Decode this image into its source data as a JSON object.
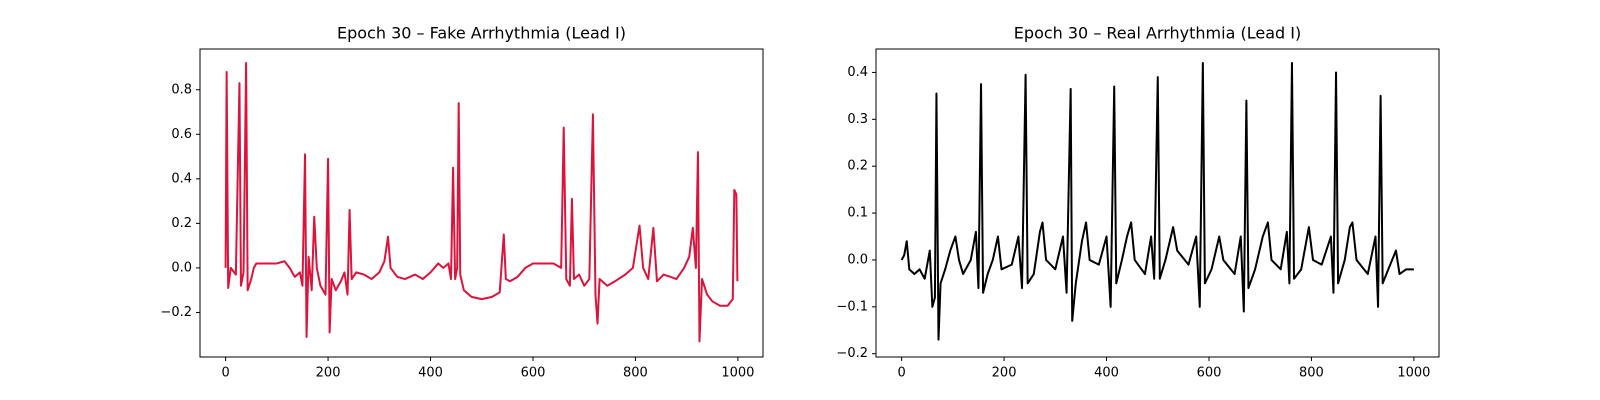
{
  "chart_data": [
    {
      "type": "line",
      "title": "Epoch 30 – Fake Arrhythmia (Lead I)",
      "color": "#dc143c",
      "x": [
        0,
        2,
        5,
        10,
        20,
        27,
        30,
        35,
        40,
        43,
        50,
        55,
        60,
        80,
        100,
        115,
        125,
        135,
        145,
        150,
        155,
        158,
        162,
        168,
        173,
        178,
        185,
        195,
        200,
        203,
        207,
        215,
        225,
        232,
        238,
        242,
        246,
        255,
        270,
        285,
        300,
        310,
        317,
        322,
        335,
        350,
        370,
        385,
        400,
        415,
        425,
        435,
        440,
        444,
        448,
        452,
        455,
        458,
        465,
        480,
        500,
        520,
        535,
        543,
        547,
        555,
        570,
        585,
        600,
        620,
        640,
        655,
        660,
        665,
        672,
        676,
        680,
        690,
        700,
        710,
        717,
        722,
        726,
        730,
        745,
        760,
        780,
        795,
        808,
        815,
        825,
        835,
        842,
        855,
        868,
        880,
        895,
        905,
        912,
        918,
        922,
        925,
        930,
        940,
        950,
        965,
        980,
        990,
        993,
        997,
        999
      ],
      "values": [
        0.0,
        0.88,
        -0.09,
        0.0,
        -0.03,
        0.83,
        -0.08,
        -0.02,
        0.92,
        -0.1,
        -0.05,
        0.0,
        0.02,
        0.02,
        0.02,
        0.03,
        0.0,
        -0.04,
        -0.02,
        -0.08,
        0.51,
        -0.31,
        0.05,
        -0.1,
        0.23,
        0.0,
        -0.08,
        -0.12,
        0.49,
        -0.29,
        -0.05,
        -0.1,
        -0.06,
        -0.02,
        -0.12,
        0.26,
        -0.05,
        -0.02,
        -0.03,
        -0.05,
        -0.02,
        0.03,
        0.14,
        0.0,
        -0.04,
        -0.05,
        -0.03,
        -0.05,
        -0.02,
        0.02,
        0.0,
        0.02,
        -0.05,
        0.45,
        -0.05,
        0.0,
        0.74,
        -0.03,
        -0.1,
        -0.13,
        -0.14,
        -0.13,
        -0.11,
        0.15,
        -0.05,
        -0.06,
        -0.04,
        0.0,
        0.02,
        0.02,
        0.02,
        0.0,
        0.63,
        -0.05,
        -0.08,
        0.31,
        -0.05,
        -0.03,
        -0.08,
        -0.05,
        0.69,
        -0.12,
        -0.25,
        -0.05,
        -0.08,
        -0.06,
        -0.03,
        0.0,
        0.19,
        0.0,
        -0.05,
        0.18,
        -0.06,
        -0.03,
        -0.04,
        -0.05,
        0.0,
        0.05,
        0.18,
        0.0,
        0.52,
        -0.33,
        -0.05,
        -0.12,
        -0.15,
        -0.17,
        -0.17,
        -0.14,
        0.35,
        0.33,
        -0.06
      ],
      "xlim": [
        -50,
        1049
      ],
      "xticks": [
        0,
        200,
        400,
        600,
        800,
        1000
      ],
      "ylim": [
        -0.4,
        0.983
      ],
      "yticks": [
        {
          "value": -0.2,
          "label": "−0.2"
        },
        {
          "value": 0,
          "label": "0.0"
        },
        0.2,
        0.4,
        0.6,
        0.8
      ]
    },
    {
      "type": "line",
      "title": "Epoch 30 – Real Arrhythmia (Lead I)",
      "color": "#000000",
      "x": [
        0,
        5,
        10,
        15,
        25,
        35,
        45,
        55,
        60,
        65,
        68,
        72,
        76,
        85,
        95,
        105,
        112,
        120,
        135,
        145,
        150,
        155,
        159,
        168,
        178,
        188,
        195,
        215,
        228,
        235,
        242,
        246,
        258,
        270,
        275,
        282,
        300,
        315,
        322,
        330,
        333,
        340,
        352,
        360,
        367,
        385,
        400,
        408,
        415,
        419,
        430,
        440,
        448,
        455,
        475,
        487,
        493,
        500,
        504,
        515,
        530,
        538,
        560,
        575,
        582,
        588,
        592,
        605,
        620,
        628,
        650,
        662,
        668,
        673,
        677,
        690,
        705,
        715,
        722,
        740,
        752,
        757,
        762,
        766,
        780,
        795,
        803,
        820,
        838,
        843,
        848,
        852,
        865,
        875,
        880,
        888,
        910,
        925,
        930,
        935,
        939,
        950,
        965,
        972,
        985,
        1000
      ],
      "values": [
        0.0,
        0.01,
        0.04,
        -0.02,
        -0.03,
        -0.02,
        -0.04,
        0.02,
        -0.1,
        -0.08,
        0.355,
        -0.17,
        -0.05,
        -0.02,
        0.02,
        0.05,
        0.0,
        -0.03,
        0.0,
        0.06,
        -0.06,
        0.375,
        -0.07,
        -0.03,
        0.0,
        0.05,
        -0.02,
        -0.01,
        0.05,
        -0.06,
        0.395,
        -0.05,
        -0.03,
        0.06,
        0.08,
        0.0,
        -0.02,
        0.05,
        -0.07,
        0.365,
        -0.13,
        -0.05,
        0.04,
        0.08,
        0.0,
        -0.01,
        0.05,
        -0.1,
        0.37,
        -0.05,
        0.0,
        0.05,
        0.08,
        0.0,
        -0.03,
        0.05,
        -0.04,
        0.39,
        -0.04,
        0.0,
        0.07,
        0.02,
        -0.01,
        0.05,
        -0.1,
        0.42,
        -0.05,
        -0.02,
        0.05,
        0.0,
        -0.03,
        0.05,
        -0.11,
        0.34,
        -0.06,
        -0.02,
        0.05,
        0.08,
        0.0,
        -0.02,
        0.06,
        -0.05,
        0.42,
        -0.04,
        -0.02,
        0.07,
        0.0,
        -0.01,
        0.05,
        -0.07,
        0.4,
        -0.05,
        0.0,
        0.07,
        0.08,
        0.0,
        -0.03,
        0.05,
        -0.1,
        0.35,
        -0.05,
        -0.02,
        0.02,
        -0.03,
        -0.02,
        -0.02
      ],
      "xlim": [
        -50,
        1049
      ],
      "xticks": [
        0,
        200,
        400,
        600,
        800,
        1000
      ],
      "ylim": [
        -0.207,
        0.45
      ],
      "yticks": [
        {
          "value": -0.2,
          "label": "−0.2"
        },
        {
          "value": -0.1,
          "label": "−0.1"
        },
        {
          "value": 0,
          "label": "0.0"
        },
        0.1,
        0.2,
        0.3,
        0.4
      ]
    }
  ]
}
